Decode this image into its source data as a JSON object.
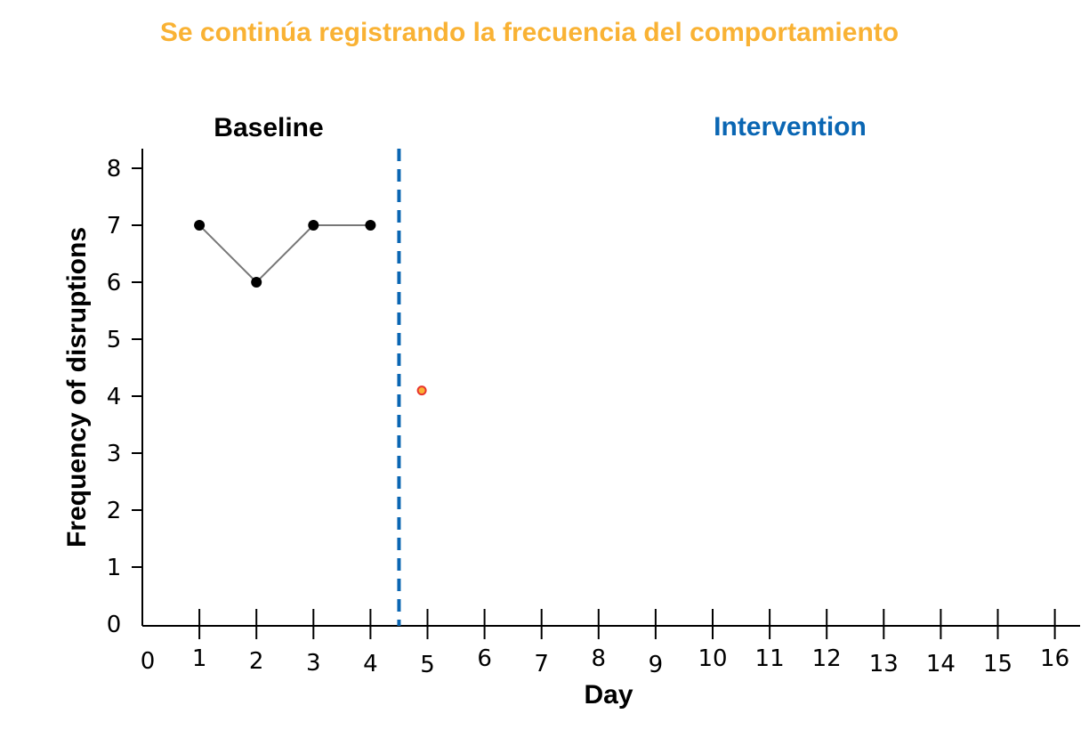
{
  "title": "Se continúa registrando la frecuencia del comportamiento",
  "colors": {
    "title": "#f9b234",
    "baseline_label": "#000000",
    "intervention_label": "#0a66b3",
    "phase_line": "#0a66b3",
    "baseline_point": "#000000",
    "baseline_line": "#777777",
    "intervention_point_fill": "#f9b234",
    "intervention_point_stroke": "#e8352e"
  },
  "chart_data": {
    "type": "line",
    "xlabel": "Day",
    "ylabel": "Frequency of disruptions",
    "xlim": [
      0,
      16
    ],
    "ylim": [
      0,
      8
    ],
    "x_ticks": [
      "0",
      "1",
      "2",
      "3",
      "4",
      "5",
      "6",
      "7",
      "8",
      "9",
      "10",
      "11",
      "12",
      "13",
      "14",
      "15",
      "16"
    ],
    "y_ticks": [
      "0",
      "1",
      "2",
      "3",
      "4",
      "5",
      "6",
      "7",
      "8"
    ],
    "phase_change_x": 4.5,
    "phases": [
      {
        "label": "Baseline"
      },
      {
        "label": "Intervention"
      }
    ],
    "series": [
      {
        "phase": "Baseline",
        "x": [
          1,
          2,
          3,
          4
        ],
        "y": [
          7,
          6,
          7,
          7
        ]
      },
      {
        "phase": "Intervention",
        "x": [
          4.9
        ],
        "y": [
          4.1
        ]
      }
    ]
  }
}
